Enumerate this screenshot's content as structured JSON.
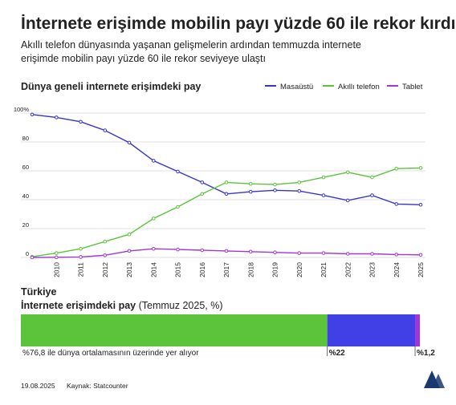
{
  "title": "İnternete erişimde mobilin payı yüzde 60 ile rekor kırdı",
  "subtitle": [
    "Akıllı telefon dünyasında yaşanan gelişmelerin ardından temmuzda internete",
    "erişimde mobilin payı yüzde 60 ile rekor seviyeye ulaştı"
  ],
  "chart_data": [
    {
      "type": "line",
      "title": "Dünya geneli internete erişimdeki pay",
      "categories": [
        null,
        "2010",
        "2011",
        "2012",
        "2013",
        "2014",
        "2015",
        "2016",
        "2017",
        "2018",
        "2019",
        "2020",
        "2021",
        "2022",
        "2023",
        "2024",
        "2025"
      ],
      "series": [
        {
          "name": "Masaüstü",
          "color": "#3535c8",
          "values": [
            99,
            97,
            94,
            88,
            79.5,
            67,
            59.5,
            52,
            44,
            45.5,
            46.5,
            46,
            43,
            39.5,
            43,
            37,
            36.5
          ]
        },
        {
          "name": "Akıllı telefon",
          "color": "#5cc43a",
          "values": [
            0.5,
            3,
            6,
            11,
            16,
            27,
            35,
            44,
            52,
            51,
            50.5,
            52,
            55.5,
            59,
            55.5,
            61.5,
            62
          ]
        },
        {
          "name": "Tablet",
          "color": "#a035d8",
          "values": [
            0,
            0.1,
            0.3,
            1.5,
            4.5,
            6,
            5.5,
            5,
            4.5,
            4,
            3.5,
            3,
            3,
            2.5,
            2.5,
            2,
            1.8
          ]
        }
      ],
      "ylim": [
        0,
        100
      ],
      "yticks": [
        0,
        20,
        40,
        60,
        80,
        {
          "value": 100,
          "label": "100%"
        }
      ],
      "grid": true,
      "legend": "top-right"
    },
    {
      "type": "stacked-bar",
      "title": "Türkiye",
      "subtitle": "İnternete erişimdeki pay",
      "subtitle_note": "(Temmuz 2025, %)",
      "series": [
        {
          "name": "Akıllı telefon",
          "color": "#5cc43a",
          "values": [
            76.8
          ],
          "value_labels": [
            "%76,8"
          ]
        },
        {
          "name": "Masaüstü",
          "color": "#4040e6",
          "values": [
            22
          ],
          "value_labels": [
            "%22"
          ]
        },
        {
          "name": "Tablet",
          "color": "#a035d8",
          "values": [
            1.2
          ],
          "value_labels": [
            "%1,2"
          ]
        }
      ],
      "annotation": "ile dünya ortalamasının üzerinde yer alıyor",
      "xlim": [
        0,
        100
      ]
    }
  ],
  "footer": {
    "date": "19.08.2025",
    "source": "Kaynak: Statcounter"
  }
}
